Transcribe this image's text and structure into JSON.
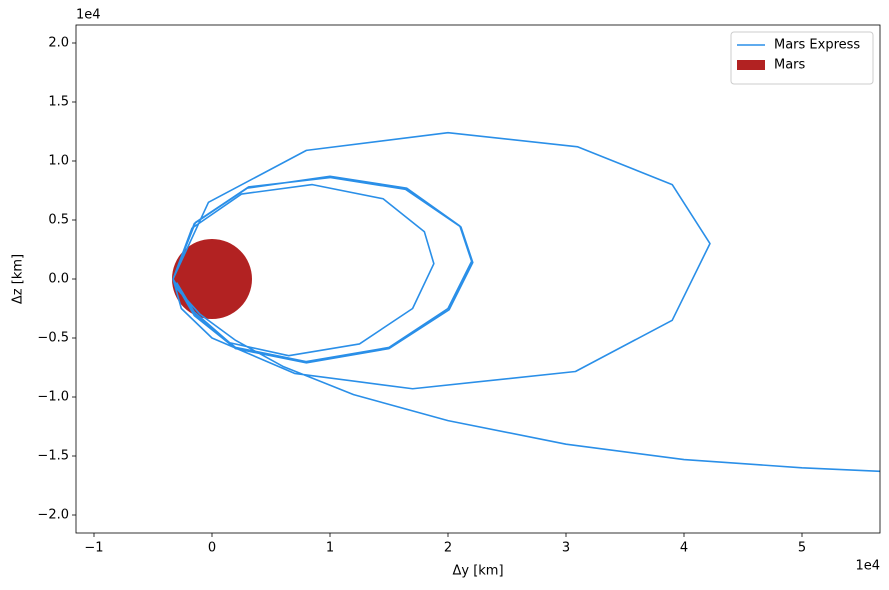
{
  "chart_data": {
    "type": "line",
    "x_label": "Δy [km]",
    "y_label": "Δz [km]",
    "x_offset_label": "1e4",
    "y_offset_label": "1e4",
    "xlim": [
      -11525,
      56610
    ],
    "ylim": [
      -21525,
      21525
    ],
    "xticks": [
      {
        "value": -10000,
        "label": "−1"
      },
      {
        "value": 0,
        "label": "0"
      },
      {
        "value": 10000,
        "label": "1"
      },
      {
        "value": 20000,
        "label": "2"
      },
      {
        "value": 30000,
        "label": "3"
      },
      {
        "value": 40000,
        "label": "4"
      },
      {
        "value": 50000,
        "label": "5"
      }
    ],
    "yticks": [
      {
        "value": -20000,
        "label": "−2.0"
      },
      {
        "value": -15000,
        "label": "−1.5"
      },
      {
        "value": -10000,
        "label": "−1.0"
      },
      {
        "value": -5000,
        "label": "−0.5"
      },
      {
        "value": 0,
        "label": "0.0"
      },
      {
        "value": 5000,
        "label": "0.5"
      },
      {
        "value": 10000,
        "label": "1.0"
      },
      {
        "value": 15000,
        "label": "1.5"
      },
      {
        "value": 20000,
        "label": "2.0"
      }
    ],
    "legend": "upper right",
    "series": [
      {
        "name": "Mars Express",
        "color": "#2a8fe8",
        "x": [
          56610,
          50000,
          40000,
          30000,
          20000,
          12000,
          6000,
          2000,
          -1000,
          -3000,
          -3300,
          -300,
          8000,
          20000,
          31000,
          39000,
          42200,
          39000,
          30800,
          17000,
          7000,
          0,
          -2600,
          -3300,
          -1500,
          3000,
          10000,
          16500,
          21000,
          22000,
          20000,
          15000,
          8000,
          2000,
          -1500,
          -3300,
          -1400,
          3100,
          10000,
          16400,
          21100,
          22100,
          20100,
          15000,
          8000,
          2000,
          -1500,
          -3300,
          -1700,
          2500,
          8500,
          14500,
          18000,
          18800,
          17000,
          12500,
          6500,
          1500,
          -1500,
          -3000
        ],
        "values": [
          -16300,
          -16000,
          -15300,
          -14000,
          -12000,
          -9800,
          -7400,
          -5200,
          -3000,
          -800,
          0,
          6500,
          10900,
          12400,
          11200,
          8000,
          3000,
          -3500,
          -7840,
          -9300,
          -8000,
          -5000,
          -2500,
          0,
          4700,
          7700,
          8700,
          7700,
          4500,
          1500,
          -2500,
          -5800,
          -7000,
          -5800,
          -3000,
          0,
          4800,
          7800,
          8600,
          7600,
          4400,
          1400,
          -2600,
          -5900,
          -7100,
          -5900,
          -3100,
          0,
          4300,
          7200,
          8000,
          6800,
          4000,
          1300,
          -2500,
          -5500,
          -6500,
          -5400,
          -2800,
          -300
        ]
      }
    ],
    "patches": [
      {
        "name": "Mars",
        "color": "#b22222",
        "center": [
          0,
          0
        ],
        "radius": 3390
      }
    ]
  }
}
